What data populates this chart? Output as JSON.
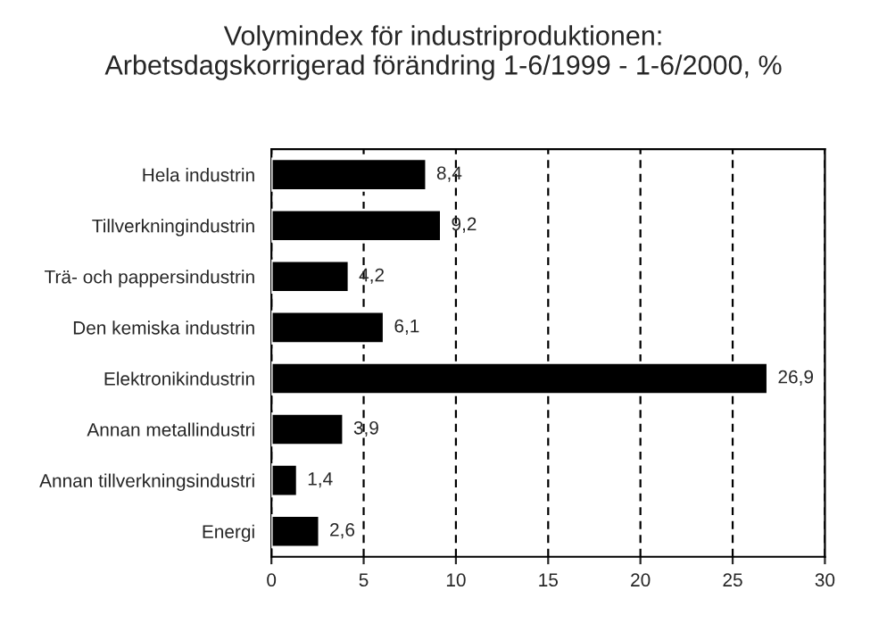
{
  "chart_data": {
    "type": "bar",
    "orientation": "horizontal",
    "title": "Volymindex för industriproduktionen:\nArbetsdagskorrigerad förändring 1-6/1999 - 1-6/2000, %",
    "categories": [
      "Hela industrin",
      "Tillverkningindustrin",
      "Trä- och pappersindustrin",
      "Den kemiska industrin",
      "Elektronikindustrin",
      "Annan metallindustri",
      "Annan tillverkningsindustri",
      "Energi"
    ],
    "values": [
      8.4,
      9.2,
      4.2,
      6.1,
      26.9,
      3.9,
      1.4,
      2.6
    ],
    "value_labels": [
      "8,4",
      "9,2",
      "4,2",
      "6,1",
      "26,9",
      "3,9",
      "1,4",
      "2,6"
    ],
    "color": "#000000",
    "xlim": [
      0,
      30
    ],
    "xticks": [
      0,
      5,
      10,
      15,
      20,
      25,
      30
    ],
    "grid": "x",
    "legend": false
  }
}
